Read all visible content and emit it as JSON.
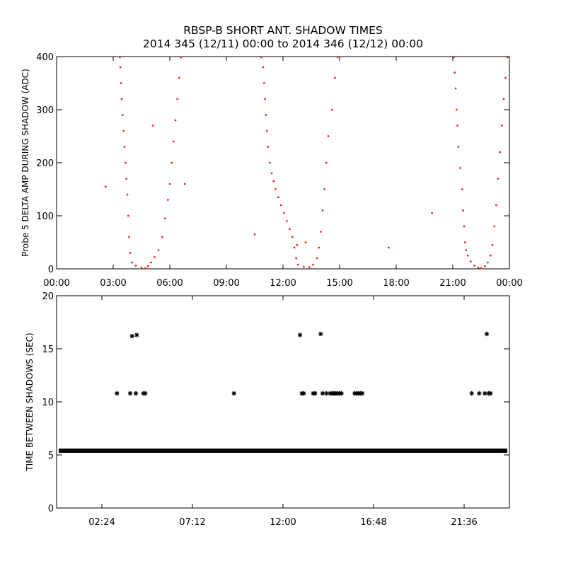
{
  "chart_data": [
    {
      "type": "scatter",
      "title": "RBSP-B SHORT ANT. SHADOW TIMES",
      "subtitle": "2014 345 (12/11) 00:00 to 2014 346 (12/12) 00:00",
      "xlabel": "",
      "ylabel": "Probe 5 DELTA AMP DURING SHADOW (ADC)",
      "xlim_hours": [
        0,
        24
      ],
      "ylim": [
        0,
        400
      ],
      "xtick_labels": [
        "00:00",
        "03:00",
        "06:00",
        "09:00",
        "12:00",
        "15:00",
        "18:00",
        "21:00",
        "00:00"
      ],
      "xtick_values": [
        0,
        3,
        6,
        9,
        12,
        15,
        18,
        21,
        24
      ],
      "ytick_labels": [
        "0",
        "100",
        "200",
        "300",
        "400"
      ],
      "ytick_values": [
        0,
        100,
        200,
        300,
        400
      ],
      "grid": false,
      "color": "#e8251a",
      "series": [
        {
          "points": [
            [
              3.35,
              400
            ],
            [
              3.38,
              380
            ],
            [
              3.42,
              350
            ],
            [
              3.45,
              320
            ],
            [
              3.5,
              290
            ],
            [
              3.55,
              260
            ],
            [
              3.6,
              230
            ],
            [
              3.65,
              200
            ],
            [
              3.7,
              170
            ],
            [
              3.75,
              140
            ],
            [
              3.8,
              100
            ],
            [
              3.85,
              60
            ],
            [
              3.9,
              30
            ],
            [
              4.0,
              12
            ],
            [
              4.2,
              6
            ],
            [
              4.5,
              2
            ],
            [
              4.7,
              1
            ],
            [
              4.85,
              5
            ],
            [
              5.0,
              12
            ],
            [
              5.2,
              22
            ],
            [
              5.4,
              35
            ],
            [
              5.6,
              60
            ],
            [
              5.75,
              95
            ],
            [
              5.9,
              130
            ],
            [
              6.0,
              160
            ],
            [
              6.1,
              200
            ],
            [
              6.2,
              240
            ],
            [
              6.3,
              280
            ],
            [
              6.4,
              320
            ],
            [
              6.5,
              360
            ],
            [
              6.6,
              400
            ],
            [
              10.85,
              400
            ],
            [
              10.95,
              380
            ],
            [
              11.0,
              350
            ],
            [
              11.05,
              320
            ],
            [
              11.1,
              290
            ],
            [
              11.15,
              260
            ],
            [
              11.2,
              230
            ],
            [
              11.3,
              200
            ],
            [
              11.4,
              180
            ],
            [
              11.5,
              165
            ],
            [
              11.6,
              150
            ],
            [
              11.75,
              135
            ],
            [
              11.9,
              120
            ],
            [
              12.05,
              105
            ],
            [
              12.2,
              90
            ],
            [
              12.35,
              75
            ],
            [
              12.5,
              60
            ],
            [
              12.6,
              40
            ],
            [
              12.7,
              20
            ],
            [
              12.8,
              8
            ],
            [
              13.1,
              4
            ],
            [
              13.4,
              3
            ],
            [
              13.6,
              8
            ],
            [
              13.8,
              20
            ],
            [
              13.9,
              40
            ],
            [
              14.0,
              70
            ],
            [
              14.1,
              110
            ],
            [
              14.2,
              150
            ],
            [
              14.3,
              200
            ],
            [
              14.4,
              250
            ],
            [
              14.6,
              300
            ],
            [
              14.75,
              360
            ],
            [
              14.9,
              400
            ],
            [
              21.05,
              400
            ],
            [
              21.1,
              370
            ],
            [
              21.15,
              340
            ],
            [
              21.2,
              300
            ],
            [
              21.25,
              270
            ],
            [
              21.3,
              230
            ],
            [
              21.4,
              190
            ],
            [
              21.5,
              150
            ],
            [
              21.55,
              110
            ],
            [
              21.6,
              80
            ],
            [
              21.65,
              50
            ],
            [
              21.7,
              35
            ],
            [
              21.8,
              25
            ],
            [
              21.95,
              14
            ],
            [
              22.15,
              6
            ],
            [
              22.35,
              2
            ],
            [
              22.5,
              1
            ],
            [
              22.7,
              5
            ],
            [
              22.85,
              12
            ],
            [
              23.0,
              25
            ],
            [
              23.1,
              45
            ],
            [
              23.2,
              80
            ],
            [
              23.3,
              120
            ],
            [
              23.4,
              170
            ],
            [
              23.5,
              220
            ],
            [
              23.6,
              270
            ],
            [
              23.7,
              320
            ],
            [
              23.8,
              360
            ],
            [
              23.9,
              400
            ],
            [
              2.6,
              155
            ],
            [
              6.8,
              160
            ],
            [
              10.5,
              65
            ],
            [
              12.75,
              45
            ],
            [
              13.2,
              50
            ],
            [
              17.6,
              40
            ],
            [
              19.9,
              105
            ],
            [
              5.1,
              270
            ]
          ]
        }
      ]
    },
    {
      "type": "scatter",
      "title": "",
      "xlabel": "",
      "ylabel": "TIME BETWEEN SHADOWS (SEC)",
      "xlim_hours": [
        0,
        24
      ],
      "ylim": [
        0,
        20
      ],
      "xtick_labels": [
        "02:24",
        "07:12",
        "12:00",
        "16:48",
        "21:36"
      ],
      "xtick_values": [
        2.4,
        7.2,
        12.0,
        16.8,
        21.6
      ],
      "ytick_labels": [
        "0",
        "5",
        "10",
        "15",
        "20"
      ],
      "ytick_values": [
        0,
        5,
        10,
        15,
        20
      ],
      "grid": false,
      "color": "#000000",
      "baseline_value": 5.4,
      "series": [
        {
          "points": [
            [
              3.2,
              10.8
            ],
            [
              3.9,
              10.8
            ],
            [
              4.2,
              10.8
            ],
            [
              4.6,
              10.8
            ],
            [
              4.7,
              10.8
            ],
            [
              4.0,
              16.2
            ],
            [
              4.25,
              16.3
            ],
            [
              9.4,
              10.8
            ],
            [
              13.0,
              10.8
            ],
            [
              13.1,
              10.8
            ],
            [
              13.6,
              10.8
            ],
            [
              13.7,
              10.8
            ],
            [
              14.1,
              10.8
            ],
            [
              14.3,
              10.8
            ],
            [
              14.5,
              10.8
            ],
            [
              14.6,
              10.8
            ],
            [
              14.7,
              10.8
            ],
            [
              14.8,
              10.8
            ],
            [
              14.9,
              10.8
            ],
            [
              15.0,
              10.8
            ],
            [
              15.1,
              10.8
            ],
            [
              15.8,
              10.8
            ],
            [
              15.9,
              10.8
            ],
            [
              16.0,
              10.8
            ],
            [
              16.1,
              10.8
            ],
            [
              16.2,
              10.8
            ],
            [
              12.9,
              16.3
            ],
            [
              14.0,
              16.4
            ],
            [
              22.0,
              10.8
            ],
            [
              22.4,
              10.8
            ],
            [
              22.7,
              10.8
            ],
            [
              22.9,
              10.8
            ],
            [
              23.0,
              10.8
            ],
            [
              22.8,
              16.4
            ]
          ]
        }
      ]
    }
  ]
}
